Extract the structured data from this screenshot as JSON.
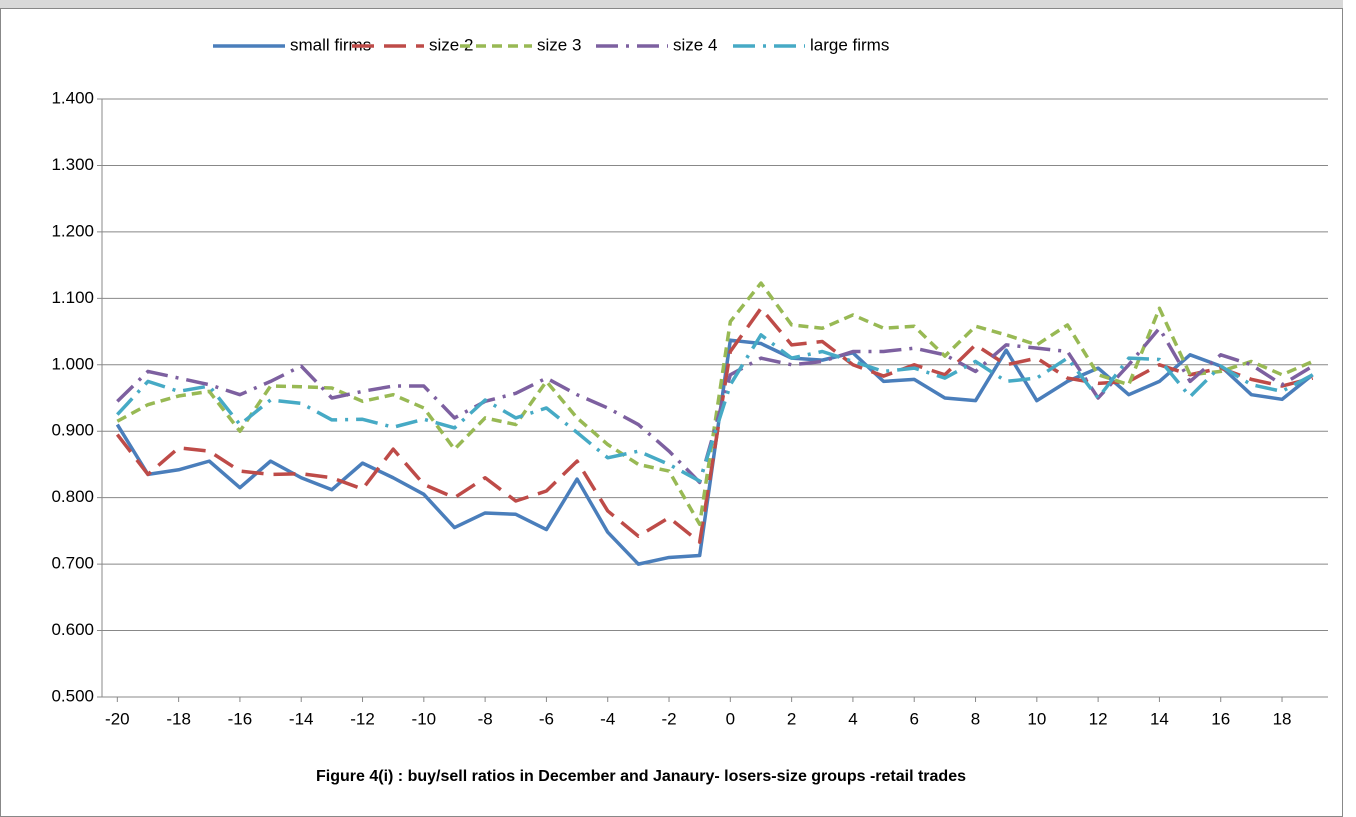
{
  "chart_data": {
    "type": "line",
    "caption": "Figure 4(i) : buy/sell ratios in December and Janaury- losers-size groups  -retail trades",
    "x": [
      -20,
      -19,
      -18,
      -17,
      -16,
      -15,
      -14,
      -13,
      -12,
      -11,
      -10,
      -9,
      -8,
      -7,
      -6,
      -5,
      -4,
      -3,
      -2,
      -1,
      0,
      1,
      2,
      3,
      4,
      5,
      6,
      7,
      8,
      9,
      10,
      11,
      12,
      13,
      14,
      15,
      16,
      17,
      18,
      19
    ],
    "xlim": [
      -20.5,
      19.5
    ],
    "xticks": [
      -20,
      -18,
      -16,
      -14,
      -12,
      -10,
      -8,
      -6,
      -4,
      -2,
      0,
      2,
      4,
      6,
      8,
      10,
      12,
      14,
      16,
      18
    ],
    "ylim": [
      0.5,
      1.4
    ],
    "yticks": [
      {
        "value": 0.5,
        "label": "0.500"
      },
      {
        "value": 0.6,
        "label": "0.600"
      },
      {
        "value": 0.7,
        "label": "0.700"
      },
      {
        "value": 0.8,
        "label": "0.800"
      },
      {
        "value": 0.9,
        "label": "0.900"
      },
      {
        "value": 1.0,
        "label": "1.000"
      },
      {
        "value": 1.1,
        "label": "1.100"
      },
      {
        "value": 1.2,
        "label": "1.200"
      },
      {
        "value": 1.3,
        "label": "1.300"
      },
      {
        "value": 1.4,
        "label": "1.400"
      }
    ],
    "grid": true,
    "legend": "top",
    "series": [
      {
        "name": "small firms",
        "color": "#4a7ebb",
        "dash": "solid",
        "values": [
          0.91,
          0.835,
          0.842,
          0.855,
          0.815,
          0.855,
          0.83,
          0.812,
          0.852,
          0.83,
          0.805,
          0.755,
          0.777,
          0.775,
          0.752,
          0.828,
          0.748,
          0.7,
          0.71,
          0.713,
          1.037,
          1.032,
          1.01,
          1.007,
          1.018,
          0.975,
          0.978,
          0.95,
          0.946,
          1.022,
          0.946,
          0.975,
          0.995,
          0.955,
          0.975,
          1.015,
          0.998,
          0.955,
          0.948,
          0.985
        ]
      },
      {
        "name": "size 2",
        "color": "#be4b48",
        "dash": "long-dash",
        "values": [
          0.895,
          0.835,
          0.875,
          0.87,
          0.84,
          0.835,
          0.836,
          0.83,
          0.813,
          0.873,
          0.82,
          0.8,
          0.83,
          0.795,
          0.81,
          0.855,
          0.78,
          0.742,
          0.77,
          0.733,
          1.02,
          1.085,
          1.03,
          1.035,
          1.0,
          0.983,
          1.0,
          0.985,
          1.03,
          1.0,
          1.01,
          0.98,
          0.972,
          0.975,
          1.0,
          0.985,
          0.995,
          0.978,
          0.968,
          0.98
        ]
      },
      {
        "name": "size 3",
        "color": "#98b954",
        "dash": "dash",
        "values": [
          0.915,
          0.94,
          0.953,
          0.96,
          0.9,
          0.968,
          0.967,
          0.965,
          0.945,
          0.955,
          0.935,
          0.873,
          0.92,
          0.91,
          0.975,
          0.92,
          0.88,
          0.85,
          0.84,
          0.76,
          1.065,
          1.123,
          1.06,
          1.055,
          1.075,
          1.055,
          1.058,
          1.013,
          1.058,
          1.045,
          1.03,
          1.06,
          0.985,
          0.97,
          1.085,
          0.985,
          0.99,
          1.005,
          0.985,
          1.005
        ]
      },
      {
        "name": "size 4",
        "color": "#7d60a0",
        "dash": "long-dash-dot",
        "values": [
          0.945,
          0.99,
          0.98,
          0.97,
          0.955,
          0.975,
          0.998,
          0.95,
          0.96,
          0.968,
          0.968,
          0.92,
          0.945,
          0.957,
          0.98,
          0.955,
          0.935,
          0.91,
          0.87,
          0.823,
          0.985,
          1.01,
          1.0,
          1.005,
          1.02,
          1.02,
          1.025,
          1.015,
          0.99,
          1.03,
          1.025,
          1.02,
          0.95,
          1.0,
          1.055,
          0.975,
          1.015,
          1.0,
          0.97,
          0.998
        ]
      },
      {
        "name": "large firms",
        "color": "#46aac5",
        "dash": "long-dash-dot",
        "values": [
          0.925,
          0.975,
          0.96,
          0.968,
          0.91,
          0.947,
          0.942,
          0.917,
          0.918,
          0.906,
          0.918,
          0.905,
          0.947,
          0.92,
          0.935,
          0.898,
          0.86,
          0.87,
          0.85,
          0.825,
          0.97,
          1.045,
          1.01,
          1.02,
          1.005,
          0.99,
          0.995,
          0.98,
          1.005,
          0.975,
          0.98,
          1.01,
          0.95,
          1.01,
          1.008,
          0.952,
          0.998,
          0.97,
          0.96,
          0.985
        ]
      }
    ]
  }
}
